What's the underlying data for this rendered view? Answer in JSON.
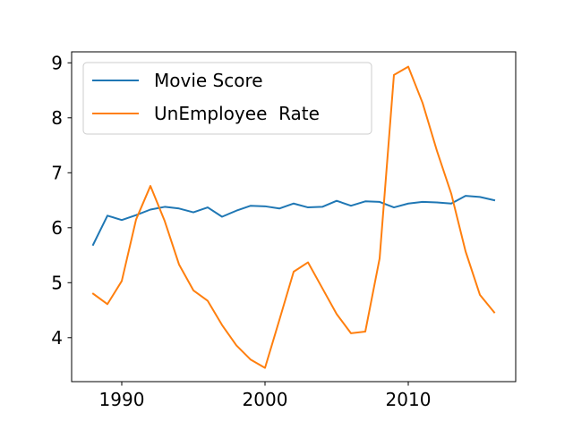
{
  "chart_data": {
    "type": "line",
    "title": "",
    "xlabel": "",
    "ylabel": "",
    "xlim": [
      1986.5,
      2017.5
    ],
    "ylim": [
      3.2,
      9.2
    ],
    "grid": false,
    "legend_position": "top-left",
    "x_ticks": [
      1990,
      2000,
      2010
    ],
    "y_ticks": [
      4,
      5,
      6,
      7,
      8,
      9
    ],
    "x": [
      1988,
      1989,
      1990,
      1991,
      1992,
      1993,
      1994,
      1995,
      1996,
      1997,
      1998,
      1999,
      2000,
      2001,
      2002,
      2003,
      2004,
      2005,
      2006,
      2007,
      2008,
      2009,
      2010,
      2011,
      2012,
      2013,
      2014,
      2015,
      2016
    ],
    "series": [
      {
        "name": "Movie Score",
        "color": "#1f77b4",
        "values": [
          5.69,
          6.22,
          6.14,
          6.23,
          6.33,
          6.38,
          6.35,
          6.28,
          6.37,
          6.2,
          6.31,
          6.4,
          6.39,
          6.35,
          6.44,
          6.37,
          6.38,
          6.49,
          6.4,
          6.48,
          6.47,
          6.37,
          6.44,
          6.47,
          6.46,
          6.44,
          6.58,
          6.56,
          6.5
        ]
      },
      {
        "name": "UnEmployee  Rate",
        "color": "#ff7f0e",
        "values": [
          4.8,
          4.61,
          5.03,
          6.15,
          6.76,
          6.12,
          5.33,
          4.86,
          4.67,
          4.23,
          3.86,
          3.6,
          3.45,
          4.32,
          5.2,
          5.37,
          4.9,
          4.43,
          4.08,
          4.11,
          5.44,
          8.78,
          8.93,
          8.27,
          7.4,
          6.62,
          5.57,
          4.78,
          4.46
        ]
      }
    ]
  }
}
